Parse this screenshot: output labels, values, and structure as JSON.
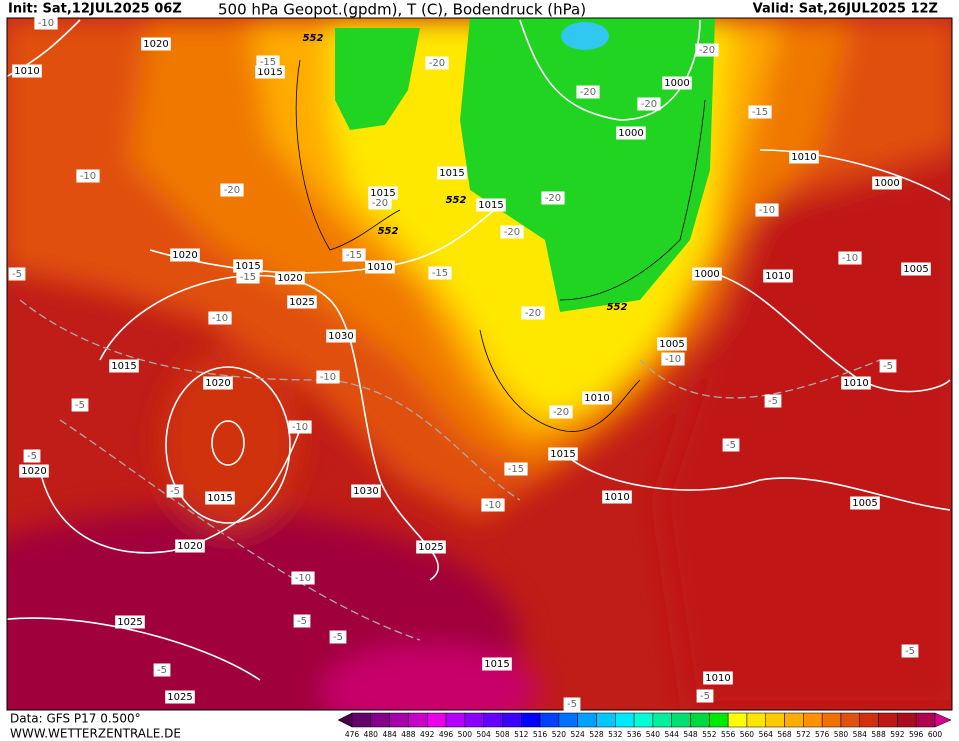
{
  "header": {
    "init": "Init: Sat,12JUL2025 06Z",
    "title": "500 hPa Geopot.(gpdm), T (C), Bodendruck (hPa)",
    "valid": "Valid: Sat,26JUL2025 12Z"
  },
  "footer": {
    "source": "Data: GFS P17 0.500°",
    "site": "WWW.WETTERZENTRALE.DE"
  },
  "colorbar": {
    "labels": [
      476,
      480,
      484,
      488,
      492,
      496,
      500,
      504,
      508,
      512,
      516,
      520,
      524,
      528,
      532,
      536,
      540,
      544,
      548,
      552,
      556,
      560,
      564,
      568,
      572,
      576,
      580,
      584,
      588,
      592,
      596,
      600
    ],
    "colors": [
      "#4a0048",
      "#64006a",
      "#84008a",
      "#a400aa",
      "#c800c8",
      "#e800e8",
      "#b400ff",
      "#8c00ff",
      "#6400ff",
      "#3c00ff",
      "#0000ff",
      "#0040ff",
      "#0070ff",
      "#00a0ff",
      "#00c8ff",
      "#00e8ff",
      "#00ffd8",
      "#00f0a0",
      "#00e070",
      "#00d840",
      "#00e800",
      "#ffff00",
      "#ffe400",
      "#ffc800",
      "#ffac00",
      "#ff9000",
      "#f07000",
      "#e05010",
      "#d03010",
      "#c01818",
      "#a80c20",
      "#b00050",
      "#d8008a"
    ]
  },
  "map_labels": [
    "1020",
    "1010",
    "1015",
    "-15",
    "-10",
    "552",
    "-20",
    "-20",
    "-20",
    "-20",
    "1000",
    "-15",
    "1000",
    "1010",
    "1000",
    "-10",
    "-20",
    "1015",
    "-20",
    "552",
    "1015",
    "1015",
    "-20",
    "552",
    "-20",
    "-10",
    "1020",
    "1015",
    "-15",
    "-15",
    "1010",
    "-15",
    "1020",
    "1000",
    "1010",
    "-10",
    "1005",
    "-5",
    "1025",
    "552",
    "-20",
    "-10",
    "1030",
    "1005",
    "-10",
    "-5",
    "1015",
    "-10",
    "1020",
    "1010",
    "-5",
    "-5",
    "1010",
    "-20",
    "-10",
    "-5",
    "-5",
    "1020",
    "-15",
    "1015",
    "-5",
    "1015",
    "1030",
    "1010",
    "-10",
    "1005",
    "1020",
    "1025",
    "-10",
    "-5",
    "1025",
    "-5",
    "-5",
    "1015",
    "1010",
    "-5",
    "1025",
    "-5",
    "-5"
  ]
}
